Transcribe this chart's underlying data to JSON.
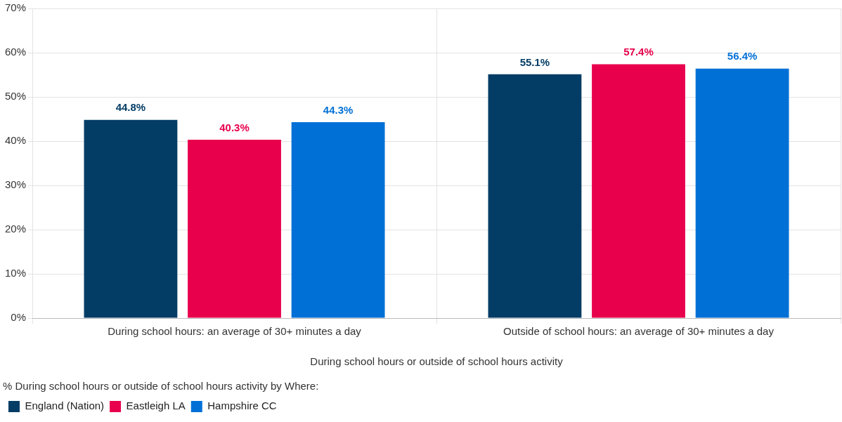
{
  "chart_data": {
    "type": "bar",
    "xlabel": "During school hours or outside of school hours activity",
    "legend_title": "% During school hours or outside of school hours activity by Where:",
    "categories": [
      "During school hours: an average of 30+ minutes a day",
      "Outside of school hours: an average of 30+ minutes a day"
    ],
    "series": [
      {
        "name": "England (Nation)",
        "color": "#033d66",
        "values": [
          44.8,
          55.1
        ],
        "value_labels": [
          "44.8%",
          "55.1%"
        ]
      },
      {
        "name": "Eastleigh LA",
        "color": "#e8004c",
        "values": [
          40.3,
          57.4
        ],
        "value_labels": [
          "40.3%",
          "57.4%"
        ]
      },
      {
        "name": "Hampshire CC",
        "color": "#0070d6",
        "values": [
          44.3,
          56.4
        ],
        "value_labels": [
          "44.3%",
          "56.4%"
        ]
      }
    ],
    "ylim": [
      0,
      70
    ],
    "yticks": [
      {
        "value": 0,
        "label": "0%"
      },
      {
        "value": 10,
        "label": "10%"
      },
      {
        "value": 20,
        "label": "20%"
      },
      {
        "value": 30,
        "label": "30%"
      },
      {
        "value": 40,
        "label": "40%"
      },
      {
        "value": 50,
        "label": "50%"
      },
      {
        "value": 60,
        "label": "60%"
      },
      {
        "value": 70,
        "label": "70%"
      }
    ],
    "grid": true,
    "legend": "bottom left"
  }
}
